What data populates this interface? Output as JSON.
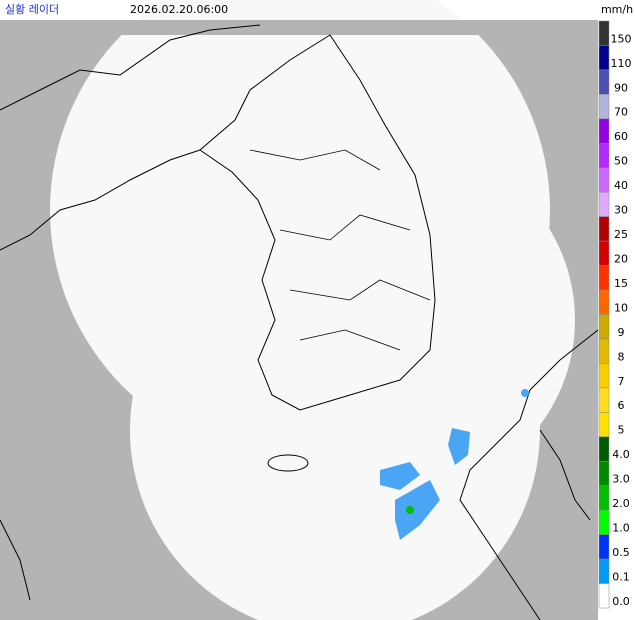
{
  "header": {
    "title": "실황 레이더",
    "timestamp": "2026.02.20.06:00"
  },
  "legend": {
    "unit": "mm/h",
    "items": [
      {
        "label": "150",
        "color": "#333333"
      },
      {
        "label": "110",
        "color": "#000390"
      },
      {
        "label": "90",
        "color": "#4c4eb1"
      },
      {
        "label": "70",
        "color": "#b3b4de"
      },
      {
        "label": "60",
        "color": "#9300e4"
      },
      {
        "label": "50",
        "color": "#b329ff"
      },
      {
        "label": "40",
        "color": "#c969ff"
      },
      {
        "label": "30",
        "color": "#e0a9ff"
      },
      {
        "label": "25",
        "color": "#b40000"
      },
      {
        "label": "20",
        "color": "#d20000"
      },
      {
        "label": "15",
        "color": "#ff3200"
      },
      {
        "label": "10",
        "color": "#ff6600"
      },
      {
        "label": "9",
        "color": "#ccaa00"
      },
      {
        "label": "8",
        "color": "#e0b900"
      },
      {
        "label": "7",
        "color": "#f9cd00"
      },
      {
        "label": "6",
        "color": "#ffdc1f"
      },
      {
        "label": "5",
        "color": "#ffe100"
      },
      {
        "label": "4.0",
        "color": "#005a00"
      },
      {
        "label": "3.0",
        "color": "#008c00"
      },
      {
        "label": "2.0",
        "color": "#00be00"
      },
      {
        "label": "1.0",
        "color": "#00ff00"
      },
      {
        "label": "0.5",
        "color": "#0033f5"
      },
      {
        "label": "0.1",
        "color": "#009bf5"
      },
      {
        "label": "0.0",
        "color": "#ffffff"
      }
    ]
  }
}
